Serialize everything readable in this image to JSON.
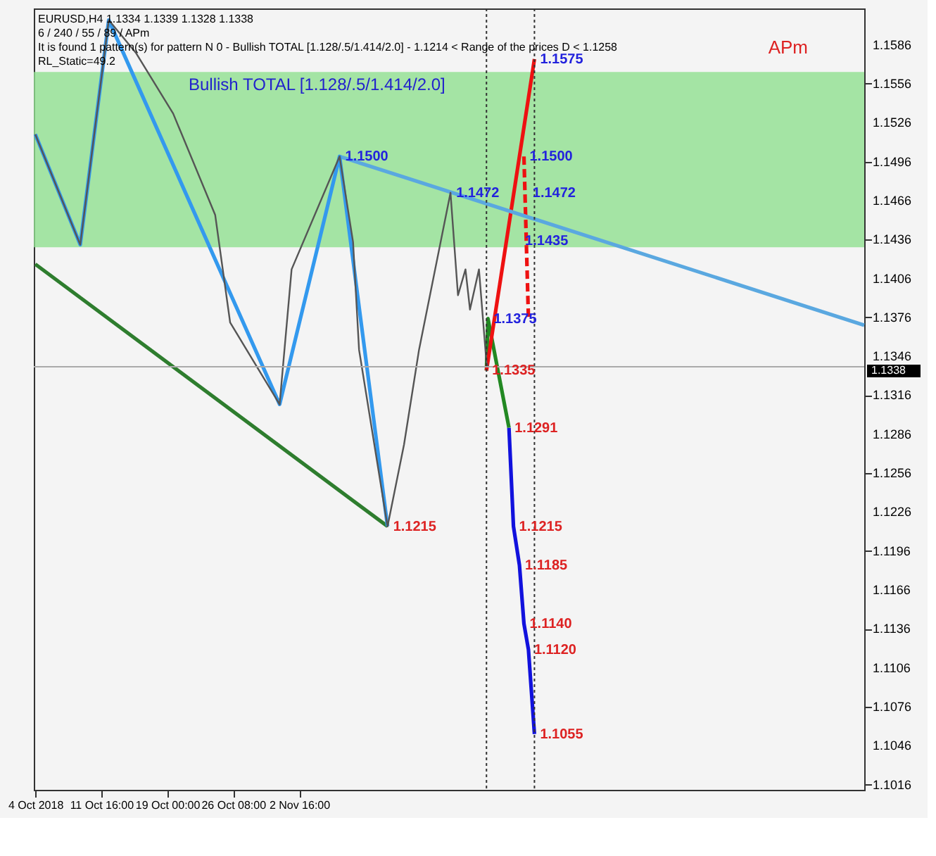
{
  "chart_data": {
    "type": "line",
    "annotations": [
      "EURUSD,H4 1.1334 1.1339 1.1328 1.1338",
      "6 / 240 / 55 / 89 / APm",
      "It is found 1 pattern(s) for pattern N 0 - Bullish TOTAL [1.128/.5/1.414/2.0] - 1.1214 < Range of the prices D < 1.1258",
      "RL_Static=49.2",
      "Bullish TOTAL [1.128/.5/1.414/2.0]",
      "APm",
      {
        "text": "1.1575",
        "x": "2018-11-28T20:00",
        "y": 1.1575
      },
      {
        "text": "1.1500",
        "x": "2018-11-07T04:00",
        "y": 1.15
      },
      {
        "text": "1.1500",
        "x": "2018-11-27T16:00",
        "y": 1.15
      },
      {
        "text": "1.1472",
        "x": "2018-11-19T12:00",
        "y": 1.1472
      },
      {
        "text": "1.1472",
        "x": "2018-11-28T00:00",
        "y": 1.1472
      },
      {
        "text": "1.1435",
        "x": "2018-11-27T04:00",
        "y": 1.1435
      },
      {
        "text": "1.1375",
        "x": "2018-11-23T16:00",
        "y": 1.1375
      },
      {
        "text": "1.1335",
        "x": "2018-11-23T12:00",
        "y": 1.1335
      },
      {
        "text": "1.1291",
        "x": "2018-11-26T00:00",
        "y": 1.1291
      },
      {
        "text": "1.1215",
        "x": "2018-11-12T12:00",
        "y": 1.1215
      },
      {
        "text": "1.1215",
        "x": "2018-11-26T12:00",
        "y": 1.1215
      },
      {
        "text": "1.1185",
        "x": "2018-11-27T04:00",
        "y": 1.1185
      },
      {
        "text": "1.1140",
        "x": "2018-11-27T16:00",
        "y": 1.114
      },
      {
        "text": "1.1120",
        "x": "2018-11-28T04:00",
        "y": 1.112
      },
      {
        "text": "1.1055",
        "x": "2018-11-28T20:00",
        "y": 1.1055
      }
    ],
    "xlim": [
      "2018-10-04T04:00",
      "2019-01-04T12:00"
    ],
    "xticks": [
      {
        "value": "2018-10-04T08:00",
        "label": "4 Oct 2018"
      },
      {
        "value": "2018-10-11T16:00",
        "label": "11 Oct 16:00"
      },
      {
        "value": "2018-10-19T00:00",
        "label": "19 Oct 00:00"
      },
      {
        "value": "2018-10-26T08:00",
        "label": "26 Oct 08:00"
      },
      {
        "value": "2018-11-02T16:00",
        "label": "2 Nov 16:00"
      }
    ],
    "ylim": [
      1.1012,
      1.1614
    ],
    "yticks": [
      1.1016,
      1.1046,
      1.1076,
      1.1106,
      1.1136,
      1.1166,
      1.1196,
      1.1226,
      1.1256,
      1.1286,
      1.1316,
      1.1346,
      1.1376,
      1.1406,
      1.1436,
      1.1466,
      1.1496,
      1.1526,
      1.1556,
      1.1586
    ],
    "bands": [
      {
        "axis": "y",
        "from": 1.143,
        "to": 1.1565,
        "color": "#90e090"
      }
    ],
    "ref_lines": [
      {
        "axis": "y",
        "value": 1.1338,
        "label": "1.1338",
        "color": "#aaaaaa"
      },
      {
        "axis": "x",
        "value": "2018-11-23T12:00",
        "color": "#333333",
        "line_style": "dotted"
      },
      {
        "axis": "x",
        "value": "2018-11-28T20:00",
        "color": "#333333",
        "line_style": "dotted"
      }
    ],
    "series": [
      {
        "color": "#555555",
        "x": [
          "2018-10-04T08:00",
          "2018-10-09T08:00",
          "2018-10-12T12:00",
          "2018-10-15T12:00",
          "2018-10-19T16:00",
          "2018-10-24T08:00",
          "2018-10-26T00:00",
          "2018-10-31T12:00",
          "2018-11-01T20:00",
          "2018-11-07T04:00",
          "2018-11-08T16:00",
          "2018-11-09T08:00",
          "2018-11-12T12:00",
          "2018-11-14T08:00",
          "2018-11-16T00:00",
          "2018-11-19T12:00",
          "2018-11-20T08:00",
          "2018-11-21T04:00",
          "2018-11-21T16:00",
          "2018-11-22T16:00",
          "2018-11-23T12:00",
          "2018-11-23T16:00"
        ],
        "values": [
          1.1517,
          1.1432,
          1.1605,
          1.158,
          1.1533,
          1.1455,
          1.1372,
          1.1309,
          1.1413,
          1.15,
          1.1434,
          1.1351,
          1.1215,
          1.1278,
          1.1351,
          1.1472,
          1.1393,
          1.1413,
          1.1382,
          1.1413,
          1.1341,
          1.1338
        ]
      },
      {
        "color": "#3399ee",
        "x": [
          "2018-10-04T08:00",
          "2018-10-09T08:00",
          "2018-10-12T12:00",
          "2018-10-31T12:00",
          "2018-11-07T04:00",
          "2018-11-12T12:00"
        ],
        "values": [
          1.1517,
          1.1432,
          1.1605,
          1.1309,
          1.15,
          1.1215
        ]
      },
      {
        "color": "#5aa8e0",
        "x": [
          "2018-11-07T04:00",
          "2019-01-04T12:00"
        ],
        "values": [
          1.15,
          1.137
        ]
      },
      {
        "color": "#2e7d2e",
        "x": [
          "2018-10-04T08:00",
          "2018-11-12T12:00"
        ],
        "values": [
          1.1417,
          1.1215
        ]
      },
      {
        "color": "#ee1111",
        "x": [
          "2018-11-23T12:00",
          "2018-11-28T20:00"
        ],
        "values": [
          1.1335,
          1.1575
        ]
      },
      {
        "color": "#ee1111",
        "line_style": "dashed",
        "x": [
          "2018-11-27T16:00",
          "2018-11-28T04:00"
        ],
        "values": [
          1.15,
          1.1375
        ]
      },
      {
        "color": "#228822",
        "x": [
          "2018-11-23T12:00",
          "2018-11-23T16:00",
          "2018-11-26T00:00"
        ],
        "values": [
          1.1335,
          1.1375,
          1.1291
        ]
      },
      {
        "color": "#1111dd",
        "x": [
          "2018-11-26T00:00",
          "2018-11-26T12:00",
          "2018-11-27T04:00",
          "2018-11-27T16:00",
          "2018-11-28T04:00",
          "2018-11-28T20:00"
        ],
        "values": [
          1.1291,
          1.1215,
          1.1185,
          1.114,
          1.112,
          1.1055
        ]
      }
    ]
  }
}
